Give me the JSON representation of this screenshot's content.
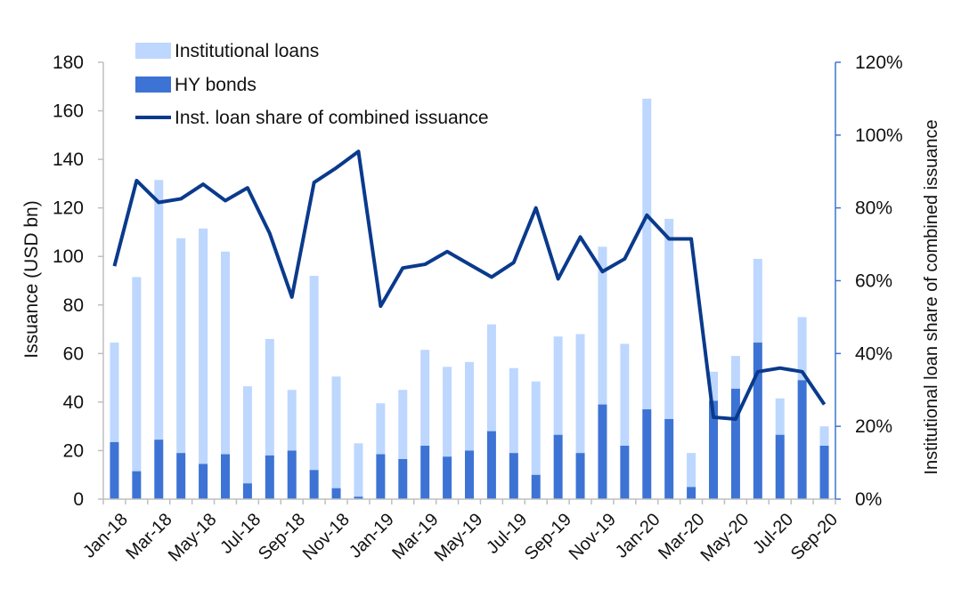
{
  "chart_data": {
    "type": "bar",
    "categories": [
      "Jan-18",
      "Feb-18",
      "Mar-18",
      "Apr-18",
      "May-18",
      "Jun-18",
      "Jul-18",
      "Aug-18",
      "Sep-18",
      "Oct-18",
      "Nov-18",
      "Dec-18",
      "Jan-19",
      "Feb-19",
      "Mar-19",
      "Apr-19",
      "May-19",
      "Jun-19",
      "Jul-19",
      "Aug-19",
      "Sep-19",
      "Oct-19",
      "Nov-19",
      "Dec-19",
      "Jan-20",
      "Feb-20",
      "Mar-20",
      "Apr-20",
      "May-20",
      "Jun-20",
      "Jul-20",
      "Aug-20",
      "Sep-20"
    ],
    "x_tick_labels": [
      "Jan-18",
      "Mar-18",
      "May-18",
      "Jul-18",
      "Sep-18",
      "Nov-18",
      "Jan-19",
      "Mar-19",
      "May-19",
      "Jul-19",
      "Sep-19",
      "Nov-19",
      "Jan-20",
      "Mar-20",
      "May-20",
      "Jul-20",
      "Sep-20"
    ],
    "series": [
      {
        "name": "Institutional loans",
        "kind": "stacked-bar",
        "color": "#bdd7ff",
        "values": [
          41,
          80,
          107,
          88.5,
          97,
          83.5,
          40,
          48,
          25,
          80,
          46,
          22,
          21,
          28.5,
          39.5,
          37,
          36.5,
          44,
          35,
          38.5,
          40.5,
          49,
          65,
          42,
          128,
          82.5,
          14,
          12,
          13.5,
          34.5,
          15,
          26,
          8
        ]
      },
      {
        "name": "HY bonds",
        "kind": "stacked-bar",
        "color": "#3d73d4",
        "values": [
          23.5,
          11.5,
          24.5,
          19,
          14.5,
          18.5,
          6.5,
          18,
          20,
          12,
          4.5,
          1,
          18.5,
          16.5,
          22,
          17.5,
          20,
          28,
          19,
          10,
          26.5,
          19,
          39,
          22,
          37,
          33,
          5,
          40.5,
          45.5,
          64.5,
          26.5,
          49,
          22
        ]
      },
      {
        "name": "Inst. loan share of combined issuance",
        "kind": "line",
        "axis": "right",
        "color": "#0a3a8c",
        "values": [
          64,
          87.5,
          81.5,
          82.5,
          86.5,
          82,
          85.5,
          73,
          55.5,
          87,
          91,
          95.5,
          53,
          63.5,
          64.5,
          68,
          64.5,
          61,
          65,
          80,
          60.5,
          72,
          62.5,
          66,
          78,
          71.5,
          71.5,
          22.5,
          22,
          35,
          36,
          35,
          26
        ]
      }
    ],
    "ylabel": "Issuance (USD bn)",
    "ylim": [
      0,
      180
    ],
    "yticks": [
      "0",
      "20",
      "40",
      "60",
      "80",
      "100",
      "120",
      "140",
      "160",
      "180"
    ],
    "y2label": "Institutional loan share of combined issuance",
    "y2lim": [
      0,
      120
    ],
    "y2ticks": [
      "0%",
      "20%",
      "40%",
      "60%",
      "80%",
      "100%",
      "120%"
    ],
    "legend_position": "top-left",
    "grid": false
  }
}
